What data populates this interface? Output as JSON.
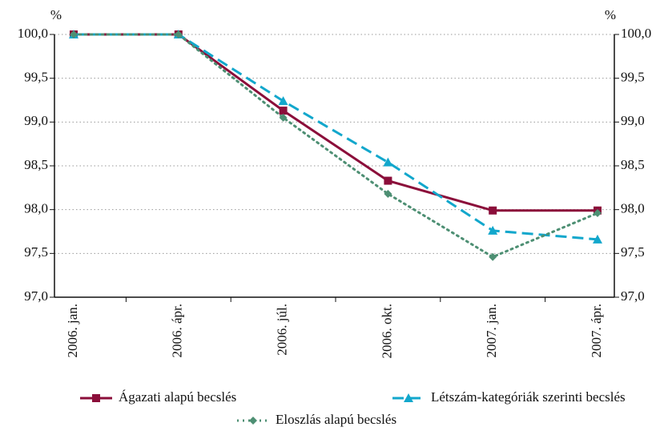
{
  "chart_data": {
    "type": "line",
    "y_unit": "%",
    "y2_unit": "%",
    "categories": [
      "2006. jan.",
      "2006. ápr.",
      "2006. júl.",
      "2006. okt.",
      "2007. jan.",
      "2007. ápr."
    ],
    "series": [
      {
        "name": "Ágazati alapú becslés",
        "color": "#8b0e3a",
        "marker": "square",
        "dash": "solid",
        "values": [
          100,
          100,
          99.13,
          98.33,
          97.99,
          97.99
        ]
      },
      {
        "name": "Létszám-kategóriák szerinti becslés",
        "color": "#12a7cc",
        "marker": "triangle",
        "dash": "dashed",
        "values": [
          100,
          100,
          99.24,
          98.54,
          97.76,
          97.66
        ]
      },
      {
        "name": "Eloszlás alapú becslés",
        "color": "#4d8f73",
        "marker": "diamond",
        "dash": "dotted",
        "values": [
          100,
          100,
          99.05,
          98.18,
          97.46,
          97.96
        ]
      }
    ],
    "ylim": [
      97,
      100
    ],
    "yticks": [
      {
        "value": 97,
        "label": "97,0"
      },
      {
        "value": 97.5,
        "label": "97,5"
      },
      {
        "value": 98,
        "label": "98,0"
      },
      {
        "value": 98.5,
        "label": "98,5"
      },
      {
        "value": 99,
        "label": "99,0"
      },
      {
        "value": 99.5,
        "label": "99,5"
      },
      {
        "value": 100,
        "label": "100,0"
      }
    ],
    "y2lim": [
      97,
      100
    ],
    "y2ticks": [
      {
        "value": 97,
        "label": "97,0"
      },
      {
        "value": 97.5,
        "label": "97,5"
      },
      {
        "value": 98,
        "label": "98,0"
      },
      {
        "value": 98.5,
        "label": "98,5"
      },
      {
        "value": 99,
        "label": "99,0"
      },
      {
        "value": 99.5,
        "label": "99,5"
      },
      {
        "value": 100,
        "label": "100,0"
      }
    ],
    "grid": true
  }
}
